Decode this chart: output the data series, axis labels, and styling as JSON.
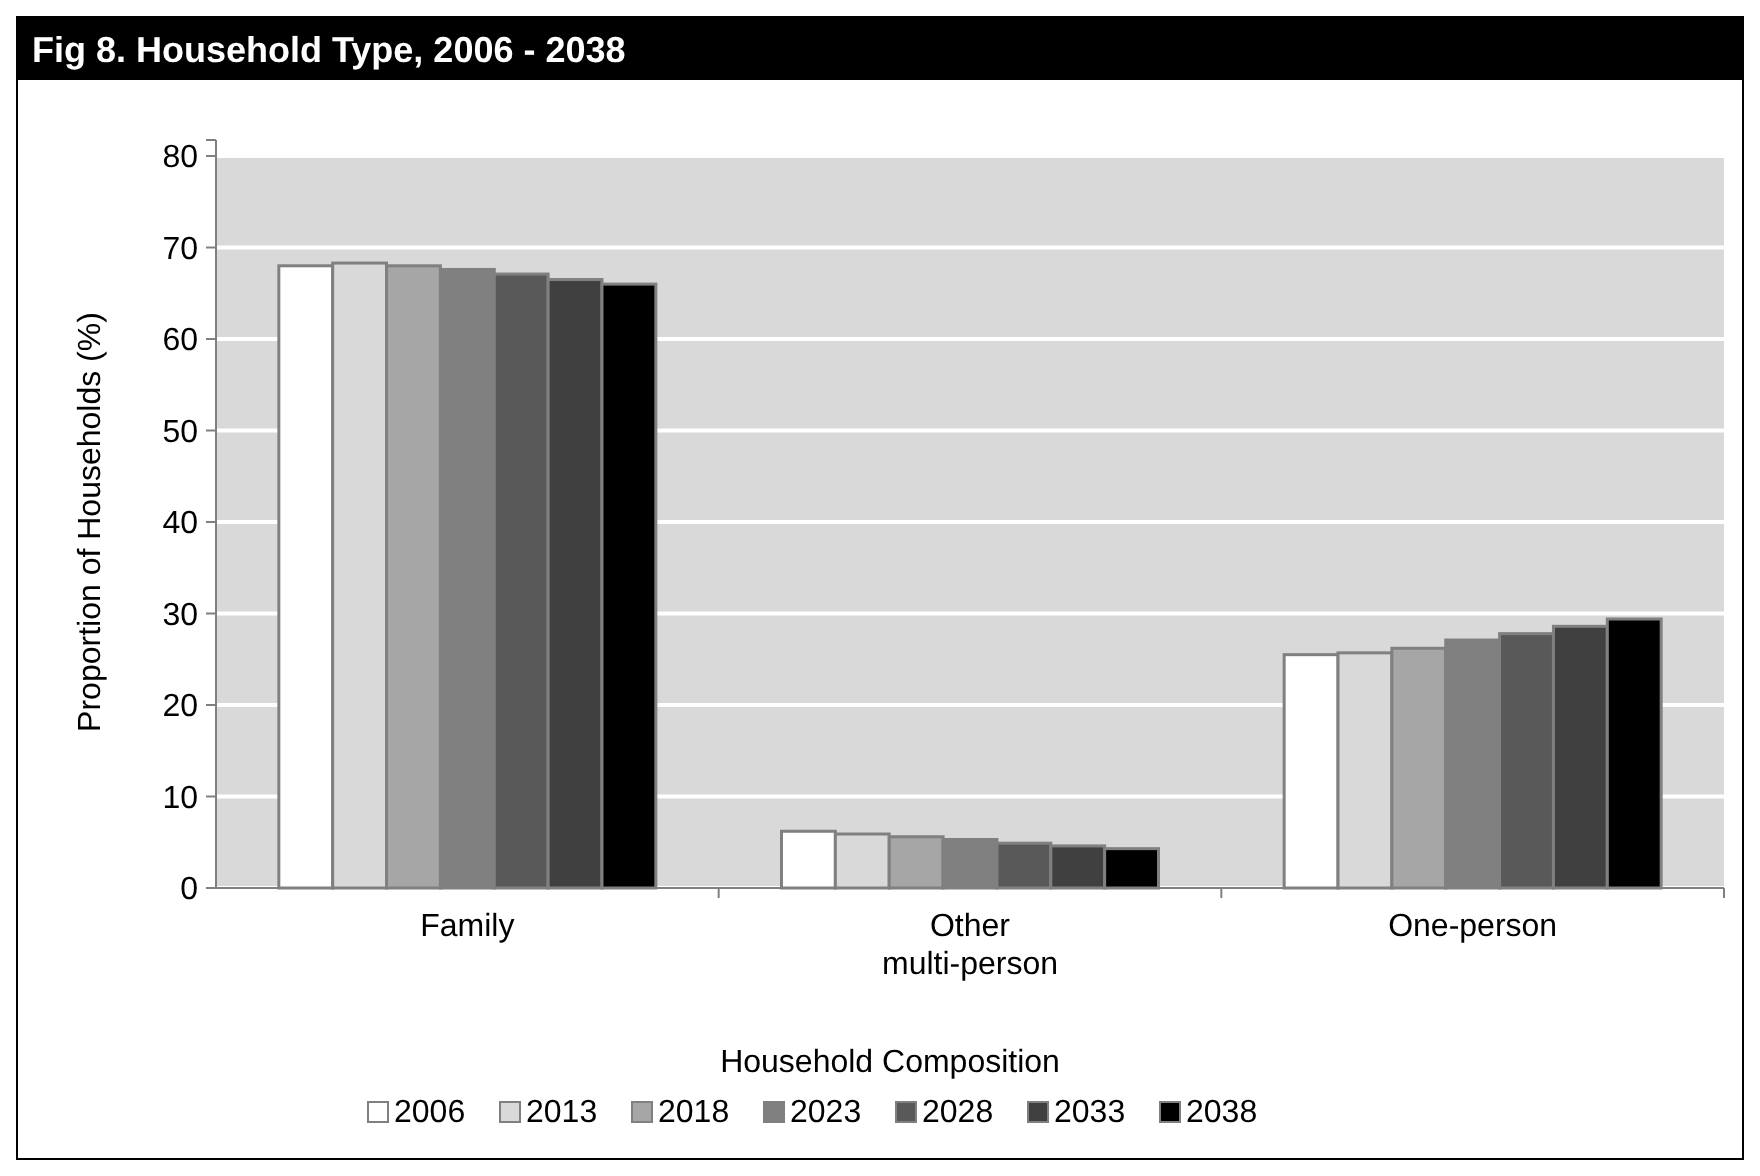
{
  "chart_data": {
    "type": "bar",
    "title": "Fig 8. Household Type, 2006 - 2038",
    "xlabel": "Household Composition",
    "ylabel": "Proportion of Households (%)",
    "categories": [
      "Family",
      "Other\nmulti-person",
      "One-person"
    ],
    "series": [
      {
        "name": "2006",
        "color": "#ffffff",
        "values": [
          68.0,
          6.2,
          25.5
        ]
      },
      {
        "name": "2013",
        "color": "#d9d9d9",
        "values": [
          68.3,
          5.9,
          25.7
        ]
      },
      {
        "name": "2018",
        "color": "#a6a6a6",
        "values": [
          68.0,
          5.6,
          26.2
        ]
      },
      {
        "name": "2023",
        "color": "#808080",
        "values": [
          67.6,
          5.3,
          27.1
        ]
      },
      {
        "name": "2028",
        "color": "#595959",
        "values": [
          67.1,
          4.9,
          27.8
        ]
      },
      {
        "name": "2033",
        "color": "#404040",
        "values": [
          66.5,
          4.6,
          28.6
        ]
      },
      {
        "name": "2038",
        "color": "#000000",
        "values": [
          66.0,
          4.3,
          29.4
        ]
      }
    ],
    "ylim": [
      0,
      80
    ],
    "yticks": [
      0,
      10,
      20,
      30,
      40,
      50,
      60,
      70,
      80
    ],
    "grid": "y",
    "legend": "bottom"
  }
}
